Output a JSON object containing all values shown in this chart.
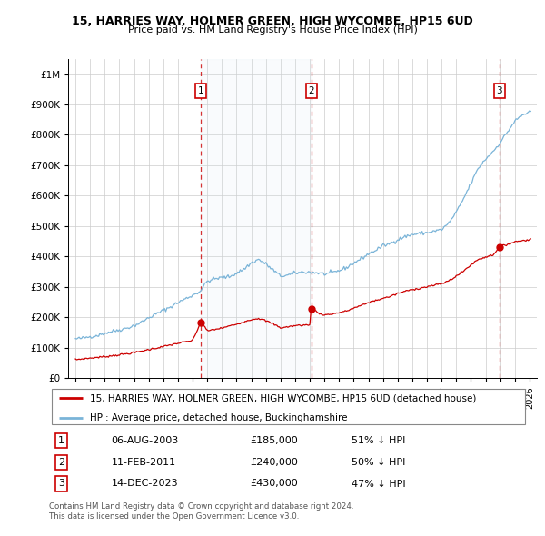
{
  "title": "15, HARRIES WAY, HOLMER GREEN, HIGH WYCOMBE, HP15 6UD",
  "subtitle": "Price paid vs. HM Land Registry's House Price Index (HPI)",
  "hpi_label": "HPI: Average price, detached house, Buckinghamshire",
  "property_label": "15, HARRIES WAY, HOLMER GREEN, HIGH WYCOMBE, HP15 6UD (detached house)",
  "hpi_color": "#7ab4d8",
  "hpi_fill_color": "#d8eaf5",
  "property_color": "#cc0000",
  "dashed_color": "#cc0000",
  "transactions": [
    {
      "num": 1,
      "date_label": "06-AUG-2003",
      "x": 2003.58,
      "price": 185000,
      "pct": "51% ↓ HPI"
    },
    {
      "num": 2,
      "date_label": "11-FEB-2011",
      "x": 2011.11,
      "price": 240000,
      "pct": "50% ↓ HPI"
    },
    {
      "num": 3,
      "date_label": "14-DEC-2023",
      "x": 2023.95,
      "price": 430000,
      "pct": "47% ↓ HPI"
    }
  ],
  "footer1": "Contains HM Land Registry data © Crown copyright and database right 2024.",
  "footer2": "This data is licensed under the Open Government Licence v3.0.",
  "ylim_min": 0,
  "ylim_max": 1050000,
  "xlim_start": 1994.5,
  "xlim_end": 2026.5,
  "yticks": [
    0,
    100000,
    200000,
    300000,
    400000,
    500000,
    600000,
    700000,
    800000,
    900000,
    1000000
  ],
  "xticks": [
    1995,
    1996,
    1997,
    1998,
    1999,
    2000,
    2001,
    2002,
    2003,
    2004,
    2005,
    2006,
    2007,
    2008,
    2009,
    2010,
    2011,
    2012,
    2013,
    2014,
    2015,
    2016,
    2017,
    2018,
    2019,
    2020,
    2021,
    2022,
    2023,
    2024,
    2025,
    2026
  ]
}
